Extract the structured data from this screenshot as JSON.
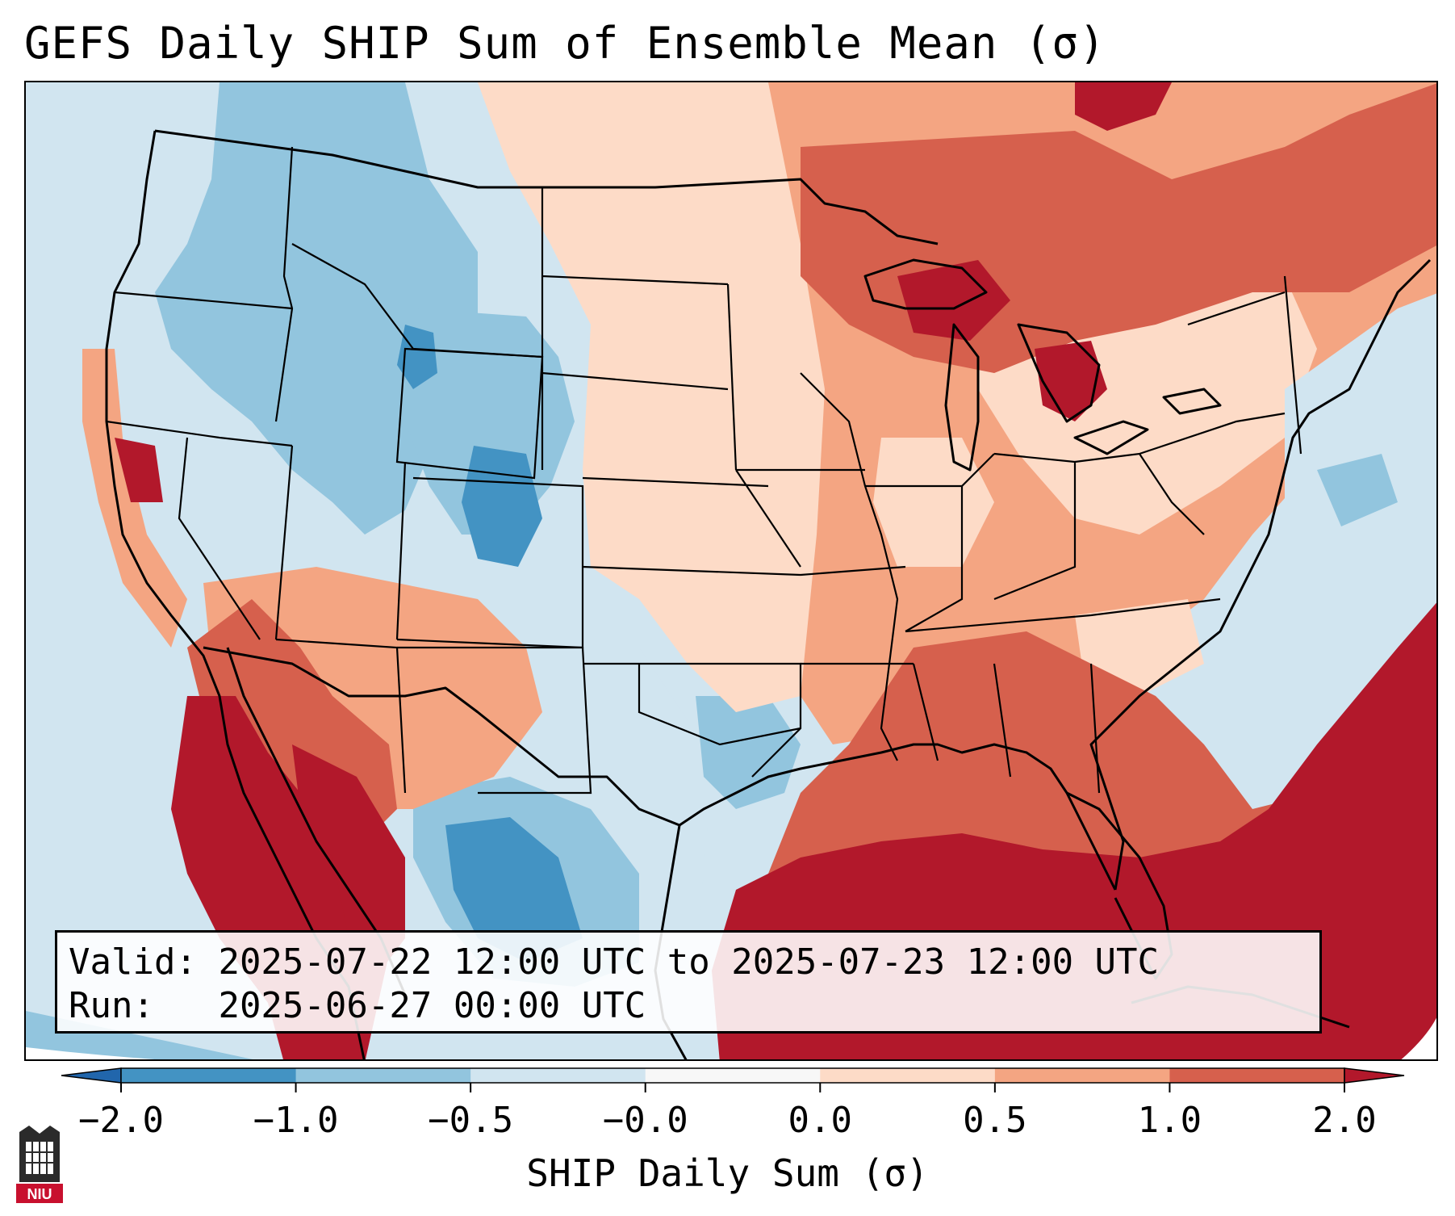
{
  "title": "GEFS Daily SHIP Sum of Ensemble Mean (σ)",
  "info": {
    "valid_label": "Valid:",
    "valid_value": "2025-07-22 12:00 UTC to 2025-07-23 12:00 UTC",
    "run_label": "Run:",
    "run_value": "2025-06-27 00:00 UTC"
  },
  "colorbar": {
    "label": "SHIP Daily Sum (σ)",
    "ticks": [
      "−2.0",
      "−1.0",
      "−0.5",
      "−0.0",
      "0.0",
      "0.5",
      "1.0",
      "2.0"
    ],
    "bin_colors": [
      "#4393c3",
      "#92c5de",
      "#d1e5f0",
      "#f7f7f7",
      "#fddbc7",
      "#f4a582",
      "#d6604d"
    ],
    "under_color": "#2166ac",
    "over_color": "#b2182b",
    "extend": "both"
  },
  "colors": {
    "deep_blue": "#4393c3",
    "light_blue": "#92c5de",
    "pale_blue": "#d1e5f0",
    "pale_red": "#fddbc7",
    "light_red": "#f4a582",
    "mid_red": "#d6604d",
    "deep_red": "#b2182b"
  },
  "logo": {
    "text": "NIU",
    "icon": "niu-building-logo"
  }
}
